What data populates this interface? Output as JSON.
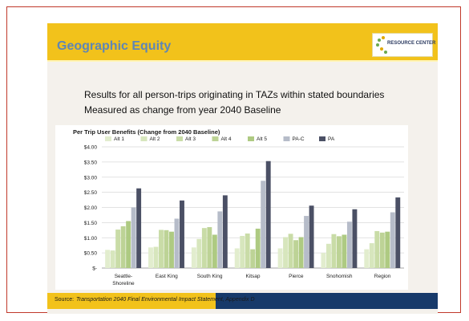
{
  "slide": {
    "title": "Geographic Equity",
    "logo_text": "RESOURCE CENTER",
    "subtitle_lines": [
      "Results for all person-trips originating in TAZs within stated boundaries",
      "Measured as change from year 2040 Baseline"
    ],
    "footer_label": "Source:",
    "footer_source": "Transportation 2040 Final Environmental Impact Statement, Appendix D"
  },
  "colors": {
    "header": "#f2c21b",
    "title": "#5f86b5",
    "footer": "#173a6a",
    "series": [
      "#e2edce",
      "#d7e6bd",
      "#c9dca7",
      "#bdd396",
      "#aeca82",
      "#b6bcc9",
      "#4b5065"
    ]
  },
  "chart_data": {
    "type": "bar",
    "title": "Per Trip User Benefits (Change from 2040 Baseline)",
    "categories": [
      "Seattle-Shoreline",
      "East King",
      "South King",
      "Kitsap",
      "Pierce",
      "Snohomish",
      "Region"
    ],
    "category_lines": [
      [
        "Seattle-",
        "Shoreline"
      ],
      [
        "East King"
      ],
      [
        "South King"
      ],
      [
        "Kitsap"
      ],
      [
        "Pierce"
      ],
      [
        "Snohomish"
      ],
      [
        "Region"
      ]
    ],
    "ylim": [
      0,
      4
    ],
    "yticks": [
      0,
      0.5,
      1,
      1.5,
      2,
      2.5,
      3,
      3.5,
      4
    ],
    "ytick_labels": [
      "$-",
      "$0.50",
      "$1.00",
      "$1.50",
      "$2.00",
      "$2.50",
      "$3.00",
      "$3.50",
      "$4.00"
    ],
    "grid": true,
    "legend_position": "top",
    "series": [
      {
        "name": "Alt 1",
        "values": [
          0.6,
          0.68,
          0.68,
          0.65,
          0.65,
          0.5,
          0.62
        ]
      },
      {
        "name": "Alt 2",
        "values": [
          0.58,
          0.7,
          0.96,
          1.06,
          1.02,
          0.8,
          0.82
        ]
      },
      {
        "name": "Alt 3",
        "values": [
          1.27,
          1.26,
          1.32,
          1.14,
          1.13,
          1.12,
          1.22
        ]
      },
      {
        "name": "Alt 4",
        "values": [
          1.38,
          1.25,
          1.35,
          0.62,
          0.92,
          1.05,
          1.17
        ]
      },
      {
        "name": "Alt 5",
        "values": [
          1.55,
          1.2,
          1.1,
          1.3,
          1.02,
          1.1,
          1.2
        ]
      },
      {
        "name": "PA-C",
        "values": [
          2.0,
          1.63,
          1.87,
          2.88,
          1.72,
          1.53,
          1.84
        ]
      },
      {
        "name": "PA",
        "values": [
          2.63,
          2.23,
          2.4,
          3.53,
          2.06,
          1.94,
          2.33
        ]
      }
    ]
  }
}
